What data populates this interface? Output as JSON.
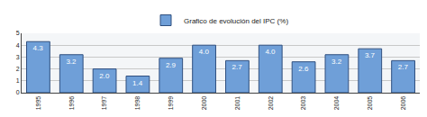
{
  "chart_data": {
    "type": "bar",
    "categories": [
      "1995",
      "1996",
      "1997",
      "1998",
      "1999",
      "2000",
      "2001",
      "2002",
      "2003",
      "2004",
      "2005",
      "2006"
    ],
    "series": [
      {
        "name": "Grafico de evolución del IPC (%)",
        "color": "#6f9fd8",
        "values": [
          4.3,
          3.2,
          2.0,
          1.4,
          2.9,
          4.0,
          2.7,
          4.0,
          2.6,
          3.2,
          3.7,
          2.7
        ],
        "value_labels": [
          "4.3",
          "3.2",
          "2.0",
          "1.4",
          "2.9",
          "4.0",
          "2.7",
          "4.0",
          "2.6",
          "3.2",
          "3.7",
          "2.7"
        ]
      }
    ],
    "ylim": [
      0,
      5
    ],
    "yticks": [
      0,
      1,
      2,
      3,
      4,
      5
    ],
    "grid": true,
    "data_labels": true,
    "legend": "top"
  }
}
